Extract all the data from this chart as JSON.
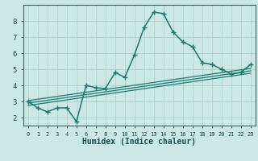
{
  "x": [
    0,
    1,
    2,
    3,
    4,
    5,
    6,
    7,
    8,
    9,
    10,
    11,
    12,
    13,
    14,
    15,
    16,
    17,
    18,
    19,
    20,
    21,
    22,
    23
  ],
  "y_main": [
    3.0,
    2.6,
    2.35,
    2.6,
    2.6,
    1.75,
    4.0,
    3.85,
    3.8,
    4.8,
    4.5,
    5.9,
    7.6,
    8.55,
    8.45,
    7.3,
    6.7,
    6.4,
    5.4,
    5.3,
    5.0,
    4.7,
    4.8,
    5.3
  ],
  "trend_lines": [
    {
      "x0": 0,
      "y0": 2.75,
      "x1": 23,
      "y1": 4.75
    },
    {
      "x0": 0,
      "y0": 2.9,
      "x1": 23,
      "y1": 4.9
    },
    {
      "x0": 0,
      "y0": 3.05,
      "x1": 23,
      "y1": 5.05
    }
  ],
  "xlim": [
    -0.5,
    23.5
  ],
  "ylim": [
    1.5,
    9.0
  ],
  "xticks": [
    0,
    1,
    2,
    3,
    4,
    5,
    6,
    7,
    8,
    9,
    10,
    11,
    12,
    13,
    14,
    15,
    16,
    17,
    18,
    19,
    20,
    21,
    22,
    23
  ],
  "yticks": [
    2,
    3,
    4,
    5,
    6,
    7,
    8
  ],
  "xlabel": "Humidex (Indice chaleur)",
  "line_color": "#1a7a6e",
  "bg_color": "#cce8e4",
  "grid_color": "#aacfca",
  "spine_color": "#3a6060",
  "tick_label_color": "#1a4a4a",
  "markersize": 3.0,
  "linewidth": 1.1,
  "trend_linewidth": 0.9,
  "xlabel_fontsize": 7.0,
  "tick_fontsize_x": 5.0,
  "tick_fontsize_y": 6.5
}
